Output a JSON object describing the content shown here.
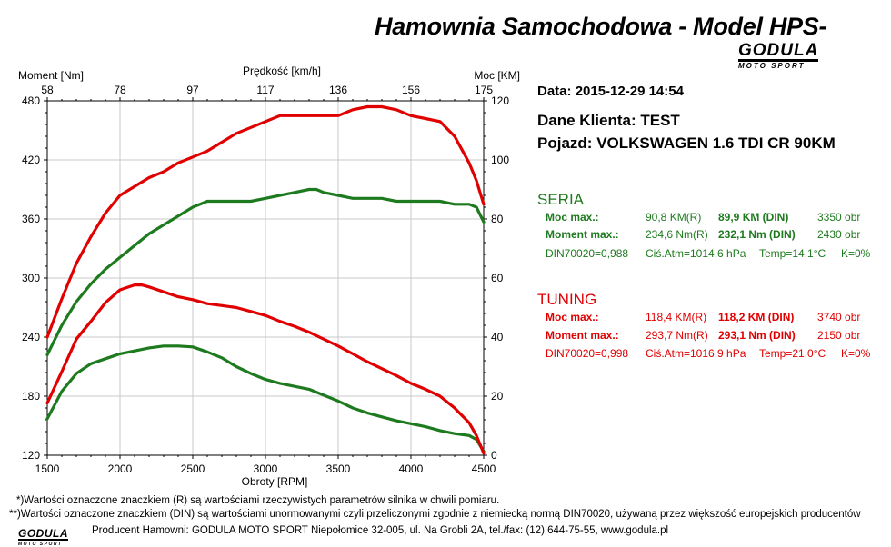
{
  "header": {
    "title": "Hamownia Samochodowa   -   Model HPS-",
    "logo_main": "GODULA",
    "logo_sub": "MOTO SPORT"
  },
  "info": {
    "date_label": "Data:",
    "date_value": "2015-12-29  14:54",
    "client_label": "Dane Klienta:",
    "client_value": "TEST",
    "vehicle_label": "Pojazd:",
    "vehicle_value": "VOLKSWAGEN 1.6 TDI CR 90KM"
  },
  "seria": {
    "heading": "SERIA",
    "power_label": "Moc max.:",
    "power_r": "90,8 KM(R)",
    "power_din": "89,9 KM (DIN)",
    "power_rpm": "3350 obr",
    "torque_label": "Moment max.:",
    "torque_r": "234,6 Nm(R)",
    "torque_din": "232,1 Nm (DIN)",
    "torque_rpm": "2430 obr",
    "din_factor": "DIN70020=0,988",
    "atm": "Ciś.Atm=1014,6 hPa",
    "temp": "Temp=14,1°C",
    "k": "K=0%"
  },
  "tuning": {
    "heading": "TUNING",
    "power_label": "Moc max.:",
    "power_r": "118,4 KM(R)",
    "power_din": "118,2 KM (DIN)",
    "power_rpm": "3740 obr",
    "torque_label": "Moment max.:",
    "torque_r": "293,7 Nm(R)",
    "torque_din": "293,1 Nm (DIN)",
    "torque_rpm": "2150 obr",
    "din_factor": "DIN70020=0,998",
    "atm": "Ciś.Atm=1016,9 hPa",
    "temp": "Temp=21,0°C",
    "k": "K=0%"
  },
  "footnotes": {
    "line1": "*)Wartości oznaczone znaczkiem (R) są wartościami rzeczywistych parametrów silnika w chwili pomiaru.",
    "line2": "**)Wartości oznaczone znaczkiem (DIN) są wartościami unormowanymi czyli przeliczonymi zgodnie z niemiecką normą DIN70020, używaną przez większość europejskich producentów",
    "footer": "Producent Hamowni: GODULA MOTO SPORT Niepołomice 32-005, ul. Na Grobli 2A, tel./fax: (12) 644-75-55, www.godula.pl"
  },
  "colors": {
    "seria": "#1e7a1e",
    "tuning": "#e00000",
    "grid": "#c8c8c8"
  },
  "chart_data": {
    "type": "line",
    "xlabel": "Obroty [RPM]",
    "x_top_label": "Prędkość [km/h]",
    "ylabel_left": "Moment [Nm]",
    "ylabel_right": "Moc [KM]",
    "xlim": [
      1500,
      4500
    ],
    "ylim_left": [
      120,
      480
    ],
    "ylim_right": [
      0,
      120
    ],
    "x_ticks": [
      1500,
      2000,
      2500,
      3000,
      3500,
      4000,
      4500
    ],
    "x_top_ticks": [
      58,
      78,
      97,
      117,
      136,
      156,
      175
    ],
    "y_left_ticks": [
      120,
      180,
      240,
      300,
      360,
      420,
      480
    ],
    "y_right_ticks": [
      0,
      20,
      40,
      60,
      80,
      100,
      120
    ],
    "grid": true,
    "series": [
      {
        "name": "SERIA",
        "quantity": "torque",
        "axis": "left",
        "color": "#1e7a1e",
        "x": [
          1500,
          1600,
          1700,
          1800,
          1900,
          2000,
          2100,
          2200,
          2300,
          2400,
          2500,
          2600,
          2700,
          2800,
          2900,
          3000,
          3100,
          3200,
          3300,
          3400,
          3500,
          3600,
          3700,
          3800,
          3900,
          4000,
          4100,
          4200,
          4300,
          4400,
          4450,
          4500
        ],
        "y": [
          157,
          185,
          203,
          213,
          218,
          223,
          226,
          229,
          231,
          231,
          230,
          225,
          219,
          210,
          203,
          197,
          193,
          190,
          187,
          181,
          175,
          168,
          163,
          159,
          155,
          152,
          149,
          145,
          142,
          140,
          136,
          124
        ]
      },
      {
        "name": "SERIA",
        "quantity": "power",
        "axis": "right",
        "color": "#1e7a1e",
        "x": [
          1500,
          1600,
          1700,
          1800,
          1900,
          2000,
          2100,
          2200,
          2300,
          2400,
          2500,
          2600,
          2700,
          2800,
          2900,
          3000,
          3100,
          3200,
          3300,
          3350,
          3400,
          3500,
          3600,
          3700,
          3800,
          3900,
          4000,
          4100,
          4200,
          4300,
          4400,
          4450,
          4500
        ],
        "y": [
          34,
          44,
          52,
          58,
          63,
          67,
          71,
          75,
          78,
          81,
          84,
          86,
          86,
          86,
          86,
          87,
          88,
          89,
          90,
          90,
          89,
          88,
          87,
          87,
          87,
          86,
          86,
          86,
          86,
          85,
          85,
          84,
          79
        ]
      },
      {
        "name": "TUNING",
        "quantity": "torque",
        "axis": "left",
        "color": "#e00000",
        "x": [
          1500,
          1600,
          1700,
          1800,
          1900,
          2000,
          2100,
          2150,
          2200,
          2300,
          2400,
          2500,
          2600,
          2700,
          2800,
          2900,
          3000,
          3100,
          3200,
          3300,
          3400,
          3500,
          3600,
          3700,
          3800,
          3900,
          4000,
          4100,
          4200,
          4300,
          4400,
          4450,
          4500
        ],
        "y": [
          173,
          205,
          238,
          256,
          275,
          288,
          293,
          293,
          291,
          286,
          281,
          278,
          274,
          272,
          270,
          266,
          262,
          256,
          251,
          245,
          238,
          231,
          223,
          215,
          208,
          201,
          193,
          187,
          180,
          168,
          153,
          140,
          122
        ]
      },
      {
        "name": "TUNING",
        "quantity": "power",
        "axis": "right",
        "color": "#e00000",
        "x": [
          1500,
          1600,
          1700,
          1800,
          1900,
          2000,
          2100,
          2200,
          2300,
          2400,
          2500,
          2600,
          2700,
          2800,
          2900,
          3000,
          3100,
          3200,
          3300,
          3400,
          3500,
          3600,
          3700,
          3740,
          3800,
          3900,
          4000,
          4100,
          4200,
          4300,
          4400,
          4450,
          4500
        ],
        "y": [
          40,
          53,
          65,
          74,
          82,
          88,
          91,
          94,
          96,
          99,
          101,
          103,
          106,
          109,
          111,
          113,
          115,
          115,
          115,
          115,
          115,
          117,
          118,
          118,
          118,
          117,
          115,
          114,
          113,
          108,
          99,
          93,
          85
        ]
      }
    ]
  }
}
